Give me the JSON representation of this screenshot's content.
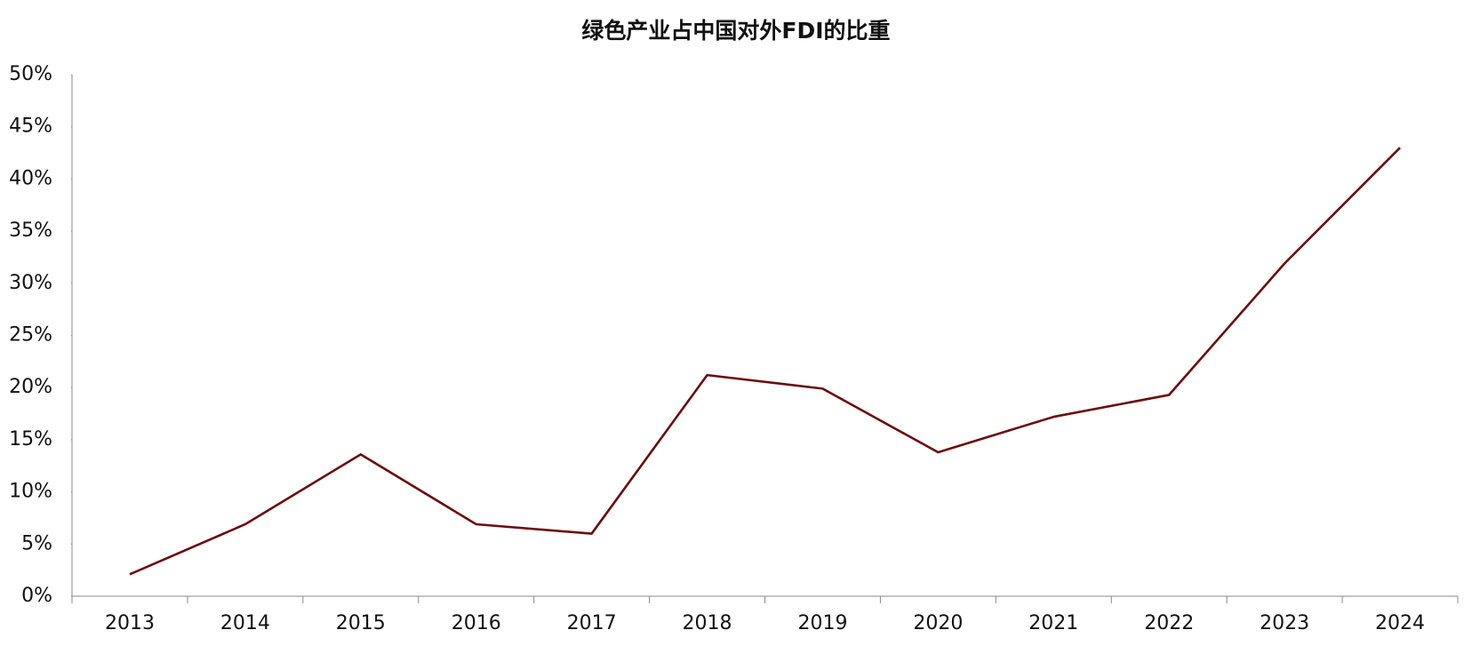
{
  "chart_data": {
    "type": "line",
    "title": "绿色产业占中国对外FDI的比重",
    "categories": [
      "2013",
      "2014",
      "2015",
      "2016",
      "2017",
      "2018",
      "2019",
      "2020",
      "2021",
      "2022",
      "2023",
      "2024"
    ],
    "values": [
      2.1,
      6.9,
      13.6,
      6.9,
      6.0,
      21.2,
      19.9,
      13.8,
      17.2,
      19.3,
      31.9,
      43.0
    ],
    "color": "#6b0d0d",
    "ylim": [
      0,
      50
    ],
    "yticks": [
      {
        "value": 0,
        "label": "0%"
      },
      {
        "value": 5,
        "label": "5%"
      },
      {
        "value": 10,
        "label": "10%"
      },
      {
        "value": 15,
        "label": "15%"
      },
      {
        "value": 20,
        "label": "20%"
      },
      {
        "value": 25,
        "label": "25%"
      },
      {
        "value": 30,
        "label": "30%"
      },
      {
        "value": 35,
        "label": "35%"
      },
      {
        "value": 40,
        "label": "40%"
      },
      {
        "value": 45,
        "label": "45%"
      },
      {
        "value": 50,
        "label": "50%"
      }
    ],
    "grid": false
  }
}
